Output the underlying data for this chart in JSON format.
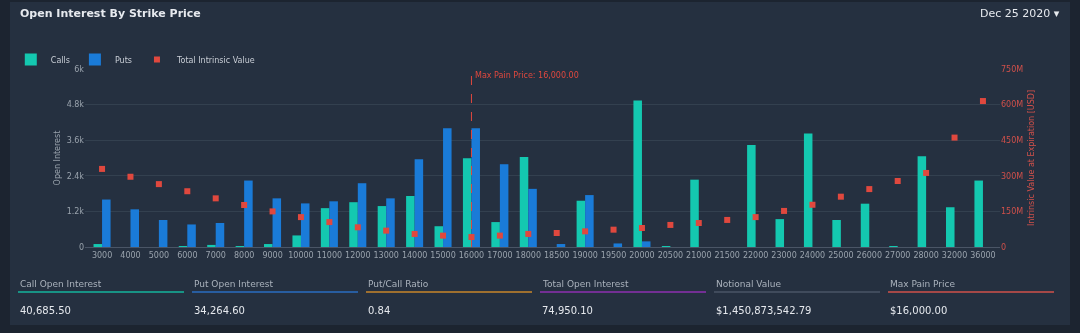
{
  "chart_data": [
    {
      "type": "bar",
      "title": "Open Interest By Strike Price",
      "subtitle": "Dec 25 2020 ▾",
      "ylabel": "Open Interest",
      "y2label": "Intrinsic Value at Expiration [USD]",
      "categories": [
        "3000",
        "4000",
        "5000",
        "6000",
        "7000",
        "8000",
        "9000",
        "10000",
        "11000",
        "12000",
        "13000",
        "14000",
        "15000",
        "16000",
        "17000",
        "18000",
        "18500",
        "19000",
        "19500",
        "20000",
        "20500",
        "21000",
        "21500",
        "22000",
        "23000",
        "24000",
        "25000",
        "26000",
        "27000",
        "28000",
        "32000",
        "36000"
      ],
      "series": [
        {
          "name": "Calls",
          "type": "bar",
          "color": "#14c8b0",
          "values": [
            100,
            0,
            0,
            30,
            70,
            30,
            100,
            390,
            1310,
            1510,
            1380,
            1720,
            700,
            2990,
            840,
            3030,
            0,
            1560,
            0,
            4940,
            20,
            2270,
            0,
            3440,
            940,
            3830,
            910,
            1460,
            30,
            3060,
            1340,
            2240
          ]
        },
        {
          "name": "Puts",
          "type": "bar",
          "color": "#1a7bd8",
          "values": [
            1600,
            1270,
            910,
            760,
            810,
            2240,
            1640,
            1470,
            1540,
            2150,
            1640,
            2960,
            4000,
            4000,
            2790,
            1960,
            100,
            1750,
            120,
            190,
            0,
            0,
            0,
            0,
            0,
            0,
            0,
            0,
            0,
            0,
            0,
            0
          ]
        },
        {
          "name": "Total Intrinsic Value",
          "type": "scatter",
          "axis": "y2",
          "marker": "square",
          "color": "#e0483e",
          "values": [
            329,
            296,
            265,
            235,
            205,
            177,
            150,
            126,
            105,
            83,
            69,
            55,
            48,
            42,
            48,
            55,
            59,
            66,
            73,
            80,
            93,
            101,
            114,
            126,
            152,
            178,
            212,
            244,
            278,
            312,
            461,
            615
          ]
        }
      ],
      "ylim": [
        0,
        6000
      ],
      "yticks": [
        0,
        {
          "value": 1200,
          "label": "1.2k"
        },
        {
          "value": 2400,
          "label": "2.4k"
        },
        {
          "value": 3600,
          "label": "3.6k"
        },
        {
          "value": 4800,
          "label": "4.8k"
        },
        {
          "value": 6000,
          "label": "6k"
        }
      ],
      "y2lim": [
        0,
        750
      ],
      "y2ticks": [
        0,
        {
          "value": 150,
          "label": "150M"
        },
        {
          "value": 300,
          "label": "300M"
        },
        {
          "value": 450,
          "label": "450M"
        },
        {
          "value": 600,
          "label": "600M"
        },
        {
          "value": 750,
          "label": "750M"
        }
      ],
      "ref_lines": [
        {
          "axis": "x",
          "value": "16000",
          "label": "Max Pain Price: 16,000.00",
          "color": "#e0483e",
          "line_style": "dashed"
        }
      ],
      "grid": "y",
      "legend": "top left"
    },
    {
      "type": "other",
      "categories": [
        "Call Open Interest",
        "Put Open Interest",
        "Put/Call Ratio",
        "Total Open Interest",
        "Notional Value",
        "Max Pain Price"
      ],
      "value_labels": [
        "40,685.50",
        "34,264.60",
        "0.84",
        "74,950.10",
        "$1,450,873,542.79",
        "$16,000.00"
      ],
      "colors": [
        "#14b49c",
        "#2a6cc0",
        "#c8862a",
        "#8e2fb0",
        "#4a5566",
        "#d0504a"
      ]
    }
  ]
}
